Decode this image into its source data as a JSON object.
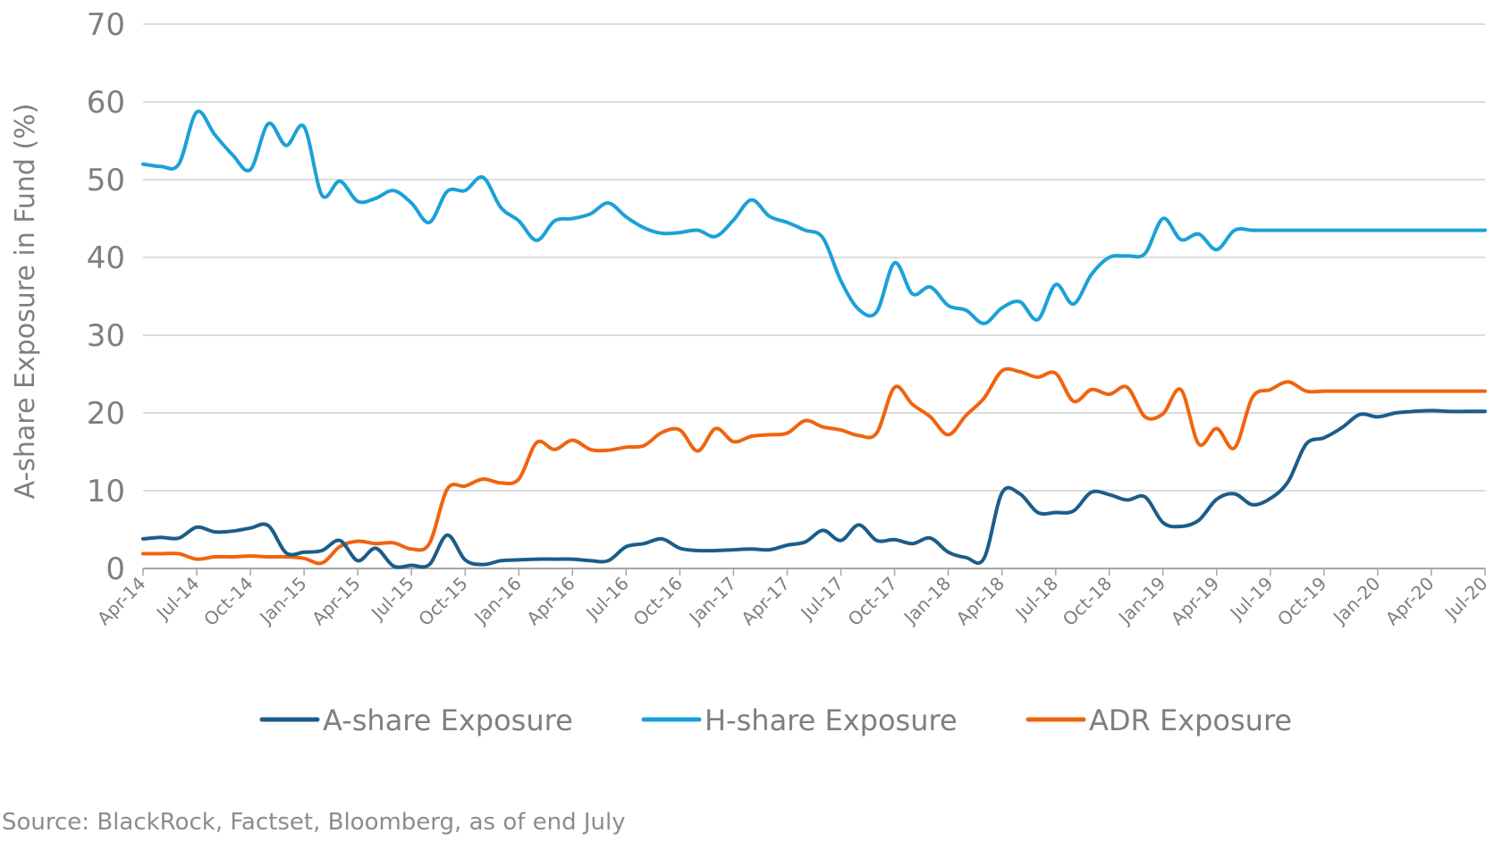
{
  "chart_data": {
    "type": "line",
    "title": "",
    "xlabel": "",
    "ylabel": "A-share Exposure in Fund (%)",
    "ylim": [
      0,
      70
    ],
    "yticks": [
      "0",
      "10",
      "20",
      "30",
      "40",
      "50",
      "60",
      "70"
    ],
    "x_tick_labels": [
      "Apr-14",
      "Jul-14",
      "Oct-14",
      "Jan-15",
      "Apr-15",
      "Jul-15",
      "Oct-15",
      "Jan-16",
      "Apr-16",
      "Jul-16",
      "Oct-16",
      "Jan-17",
      "Apr-17",
      "Jul-17",
      "Oct-17",
      "Jan-18",
      "Apr-18",
      "Jul-18",
      "Oct-18",
      "Jan-19",
      "Apr-19",
      "Jul-19",
      "Oct-19",
      "Jan-20",
      "Apr-20",
      "Jul-20"
    ],
    "grid": "horizontal",
    "legend_position": "bottom",
    "x": [
      "Apr-14",
      "May-14",
      "Jun-14",
      "Jul-14",
      "Aug-14",
      "Sep-14",
      "Oct-14",
      "Nov-14",
      "Dec-14",
      "Jan-15",
      "Feb-15",
      "Mar-15",
      "Apr-15",
      "May-15",
      "Jun-15",
      "Jul-15",
      "Aug-15",
      "Sep-15",
      "Oct-15",
      "Nov-15",
      "Dec-15",
      "Jan-16",
      "Feb-16",
      "Mar-16",
      "Apr-16",
      "May-16",
      "Jun-16",
      "Jul-16",
      "Aug-16",
      "Sep-16",
      "Oct-16",
      "Nov-16",
      "Dec-16",
      "Jan-17",
      "Feb-17",
      "Mar-17",
      "Apr-17",
      "May-17",
      "Jun-17",
      "Jul-17",
      "Aug-17",
      "Sep-17",
      "Oct-17",
      "Nov-17",
      "Dec-17",
      "Jan-18",
      "Feb-18",
      "Mar-18",
      "Apr-18",
      "May-18",
      "Jun-18",
      "Jul-18",
      "Aug-18",
      "Sep-18",
      "Oct-18",
      "Nov-18",
      "Dec-18",
      "Jan-19",
      "Feb-19",
      "Mar-19",
      "Apr-19",
      "May-19",
      "Jun-19",
      "Jul-19",
      "Aug-19",
      "Sep-19",
      "Oct-19",
      "Nov-19",
      "Dec-19",
      "Jan-20",
      "Feb-20",
      "Mar-20",
      "Apr-20",
      "May-20",
      "Jun-20",
      "Jul-20"
    ],
    "series": [
      {
        "name": "A-share Exposure",
        "color": "#1b5d8a",
        "values": [
          3.8,
          4.0,
          3.9,
          5.3,
          4.7,
          4.8,
          5.2,
          5.5,
          2.0,
          2.1,
          2.3,
          3.6,
          1.0,
          2.6,
          0.3,
          0.4,
          0.5,
          4.3,
          1.1,
          0.5,
          1.0,
          1.1,
          1.2,
          1.2,
          1.2,
          1.0,
          1.0,
          2.8,
          3.2,
          3.8,
          2.6,
          2.3,
          2.3,
          2.4,
          2.5,
          2.4,
          3.0,
          3.4,
          4.9,
          3.6,
          5.6,
          3.6,
          3.7,
          3.2,
          3.9,
          2.1,
          1.4,
          1.3,
          9.7,
          9.6,
          7.2,
          7.2,
          7.4,
          9.8,
          9.5,
          8.8,
          9.2,
          5.9,
          5.4,
          6.2,
          8.9,
          9.6,
          8.2,
          9.0,
          11.2,
          16.0,
          16.8,
          18.1,
          19.8,
          19.5,
          20.0,
          20.2,
          20.3,
          20.2,
          20.2,
          20.2
        ]
      },
      {
        "name": "H-share Exposure",
        "color": "#1ba1d7",
        "values": [
          52.0,
          51.7,
          52.0,
          58.7,
          55.8,
          53.2,
          51.3,
          57.2,
          54.4,
          56.8,
          48.0,
          49.8,
          47.2,
          47.6,
          48.6,
          47.0,
          44.5,
          48.5,
          48.6,
          50.3,
          46.4,
          44.7,
          42.2,
          44.7,
          45.0,
          45.6,
          47.0,
          45.2,
          43.8,
          43.1,
          43.2,
          43.5,
          42.7,
          44.8,
          47.4,
          45.3,
          44.5,
          43.5,
          42.5,
          37.0,
          33.3,
          33.0,
          39.3,
          35.3,
          36.2,
          33.8,
          33.2,
          31.5,
          33.5,
          34.3,
          32.0,
          36.5,
          34.0,
          37.8,
          40.0,
          40.2,
          40.5,
          45.0,
          42.3,
          43.0,
          41.0,
          43.5,
          43.5,
          43.5,
          43.5,
          43.5,
          43.5,
          43.5,
          43.5,
          43.5,
          43.5,
          43.5,
          43.5,
          43.5,
          43.5,
          43.5
        ]
      },
      {
        "name": "ADR Exposure",
        "color": "#f0640f",
        "values": [
          1.9,
          1.9,
          1.9,
          1.2,
          1.5,
          1.5,
          1.6,
          1.5,
          1.5,
          1.3,
          0.7,
          2.8,
          3.5,
          3.2,
          3.3,
          2.5,
          3.2,
          10.2,
          10.6,
          11.5,
          11.0,
          11.5,
          16.2,
          15.3,
          16.5,
          15.3,
          15.2,
          15.6,
          15.8,
          17.5,
          17.8,
          15.1,
          18.0,
          16.3,
          17.0,
          17.2,
          17.4,
          19.0,
          18.2,
          17.8,
          17.1,
          17.4,
          23.3,
          21.1,
          19.5,
          17.2,
          19.7,
          21.9,
          25.4,
          25.3,
          24.6,
          25.1,
          21.5,
          23.0,
          22.4,
          23.3,
          19.5,
          19.9,
          23.0,
          16.0,
          18.0,
          15.5,
          22.0,
          23.0,
          24.0,
          22.8,
          22.8,
          22.8,
          22.8,
          22.8,
          22.8,
          22.8,
          22.8,
          22.8,
          22.8,
          22.8
        ]
      }
    ]
  },
  "source_text": "Source: BlackRock, Factset, Bloomberg, as of end July"
}
